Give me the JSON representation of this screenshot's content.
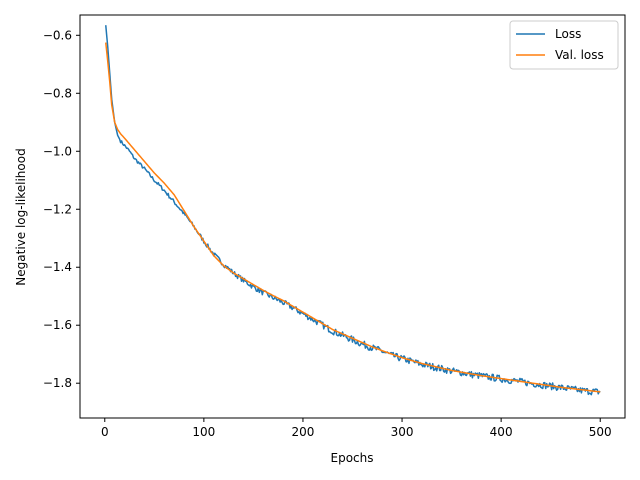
{
  "chart_data": {
    "type": "line",
    "title": "",
    "xlabel": "Epochs",
    "ylabel": "Negative log-likelihood",
    "xlim": [
      -25,
      525
    ],
    "ylim": [
      -1.92,
      -0.53
    ],
    "xticks": [
      0,
      100,
      200,
      300,
      400,
      500
    ],
    "yticks": [
      -1.8,
      -1.6,
      -1.4,
      -1.2,
      -1.0,
      -0.8,
      -0.6
    ],
    "ytick_labels": [
      "−1.8",
      "−1.6",
      "−1.4",
      "−1.2",
      "−1.0",
      "−0.8",
      "−0.6"
    ],
    "grid": false,
    "legend_position": "top-right",
    "series": [
      {
        "name": "Loss",
        "color": "#1f77b4",
        "noise": 0.012,
        "x": [
          1,
          3,
          5,
          7,
          10,
          13,
          16,
          20,
          25,
          30,
          40,
          50,
          60,
          70,
          80,
          90,
          100,
          110,
          120,
          130,
          140,
          150,
          160,
          170,
          180,
          190,
          200,
          210,
          220,
          230,
          240,
          250,
          260,
          270,
          280,
          290,
          300,
          310,
          320,
          330,
          340,
          350,
          360,
          370,
          380,
          390,
          400,
          410,
          420,
          430,
          440,
          450,
          460,
          470,
          480,
          490,
          500
        ],
        "y": [
          -0.565,
          -0.64,
          -0.73,
          -0.82,
          -0.9,
          -0.945,
          -0.965,
          -0.98,
          -1.0,
          -1.025,
          -1.06,
          -1.1,
          -1.135,
          -1.175,
          -1.215,
          -1.26,
          -1.31,
          -1.355,
          -1.39,
          -1.42,
          -1.445,
          -1.468,
          -1.488,
          -1.505,
          -1.522,
          -1.54,
          -1.56,
          -1.58,
          -1.6,
          -1.62,
          -1.635,
          -1.65,
          -1.665,
          -1.678,
          -1.69,
          -1.705,
          -1.715,
          -1.725,
          -1.735,
          -1.742,
          -1.75,
          -1.758,
          -1.763,
          -1.77,
          -1.775,
          -1.78,
          -1.785,
          -1.79,
          -1.795,
          -1.8,
          -1.805,
          -1.81,
          -1.815,
          -1.82,
          -1.825,
          -1.828,
          -1.83
        ]
      },
      {
        "name": "Val. loss",
        "color": "#ff7f0e",
        "noise": 0,
        "x": [
          1,
          3,
          5,
          7,
          10,
          13,
          16,
          20,
          25,
          30,
          40,
          50,
          60,
          70,
          80,
          90,
          100,
          110,
          120,
          130,
          140,
          150,
          160,
          170,
          180,
          190,
          200,
          210,
          220,
          230,
          240,
          250,
          260,
          270,
          280,
          290,
          300,
          310,
          320,
          330,
          340,
          350,
          360,
          370,
          380,
          390,
          400,
          410,
          420,
          430,
          440,
          450,
          460,
          470,
          480,
          490,
          500
        ],
        "y": [
          -0.625,
          -0.69,
          -0.76,
          -0.84,
          -0.9,
          -0.925,
          -0.94,
          -0.955,
          -0.975,
          -0.995,
          -1.035,
          -1.075,
          -1.11,
          -1.15,
          -1.205,
          -1.26,
          -1.31,
          -1.36,
          -1.395,
          -1.42,
          -1.44,
          -1.46,
          -1.48,
          -1.498,
          -1.515,
          -1.535,
          -1.555,
          -1.575,
          -1.595,
          -1.615,
          -1.63,
          -1.645,
          -1.66,
          -1.675,
          -1.688,
          -1.7,
          -1.712,
          -1.722,
          -1.732,
          -1.74,
          -1.748,
          -1.756,
          -1.762,
          -1.768,
          -1.774,
          -1.779,
          -1.784,
          -1.789,
          -1.794,
          -1.799,
          -1.804,
          -1.809,
          -1.814,
          -1.818,
          -1.822,
          -1.826,
          -1.83
        ]
      }
    ]
  }
}
